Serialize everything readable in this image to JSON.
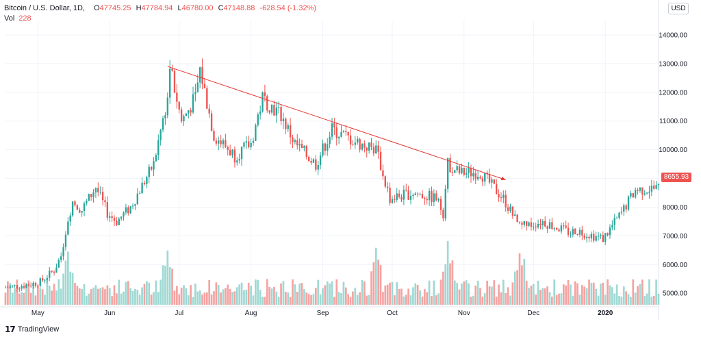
{
  "header": {
    "symbol": "Bitcoin / U.S. Dollar, 1D,",
    "open_label": "O",
    "open": "47745.25",
    "high_label": "H",
    "high": "47784.94",
    "low_label": "L",
    "low": "46780.00",
    "close_label": "C",
    "close": "47148.88",
    "change": "-628.54 (-1.32%)",
    "vol_label": "Vol",
    "vol": "228"
  },
  "currency_button": "USD",
  "last_price_tag": "8655.93",
  "brand": "TradingView",
  "colors": {
    "up": "#26a69a",
    "down": "#ef5350",
    "volume_up": "#9fd9d3",
    "volume_down": "#f5a3a2",
    "trendline": "#e53935",
    "grid": "#f0f3fa"
  },
  "chart_data": {
    "type": "candlestick",
    "title": "",
    "xlabel": "",
    "ylabel": "",
    "grid": true,
    "y_ticks": [
      "14000.00",
      "13000.00",
      "12000.00",
      "11000.00",
      "10000.00",
      "9000.00",
      "8000.00",
      "7000.00",
      "6000.00",
      "5000.00"
    ],
    "ylim": [
      4600,
      14500
    ],
    "x_ticks": [
      "May",
      "Jun",
      "Jul",
      "Aug",
      "Sep",
      "Oct",
      "Nov",
      "Dec",
      "2020"
    ],
    "x_tick_dates": [
      "2019-05-01",
      "2019-06-01",
      "2019-07-01",
      "2019-08-01",
      "2019-09-01",
      "2019-10-01",
      "2019-11-01",
      "2019-12-01",
      "2020-01-01"
    ],
    "xlim": [
      "2019-04-17",
      "2020-01-24"
    ],
    "ohlc_anchor_dates": [
      "2019-04-17",
      "2019-04-27",
      "2019-05-02",
      "2019-05-08",
      "2019-05-11",
      "2019-05-14",
      "2019-05-16",
      "2019-05-20",
      "2019-05-26",
      "2019-05-31",
      "2019-06-04",
      "2019-06-10",
      "2019-06-16",
      "2019-06-20",
      "2019-06-26",
      "2019-06-27",
      "2019-07-02",
      "2019-07-08",
      "2019-07-10",
      "2019-07-16",
      "2019-07-25",
      "2019-08-01",
      "2019-08-06",
      "2019-08-14",
      "2019-08-20",
      "2019-08-29",
      "2019-09-05",
      "2019-09-17",
      "2019-09-24",
      "2019-09-30",
      "2019-10-10",
      "2019-10-20",
      "2019-10-23",
      "2019-10-25",
      "2019-10-30",
      "2019-11-08",
      "2019-11-18",
      "2019-11-25",
      "2019-12-05",
      "2019-12-17",
      "2019-12-19",
      "2019-12-31",
      "2020-01-08",
      "2020-01-14",
      "2020-01-24"
    ],
    "close_anchors": [
      5200,
      5300,
      5400,
      5800,
      6300,
      7600,
      8200,
      7900,
      8700,
      7800,
      7500,
      8000,
      8900,
      9500,
      11800,
      12900,
      11000,
      11800,
      12800,
      10500,
      9800,
      10200,
      11800,
      11200,
      10200,
      9500,
      10700,
      10200,
      10000,
      8300,
      8500,
      8300,
      7800,
      9500,
      9200,
      9200,
      8300,
      7300,
      7500,
      7100,
      7200,
      6900,
      7800,
      8600,
      8660
    ],
    "volume_peaks_dates": [
      "2019-05-14",
      "2019-06-26",
      "2019-09-24",
      "2019-10-25",
      "2019-11-25"
    ],
    "trendline": {
      "from": {
        "date": "2019-06-26",
        "price": 12900
      },
      "to": {
        "date": "2019-11-19",
        "price": 8950
      }
    }
  }
}
